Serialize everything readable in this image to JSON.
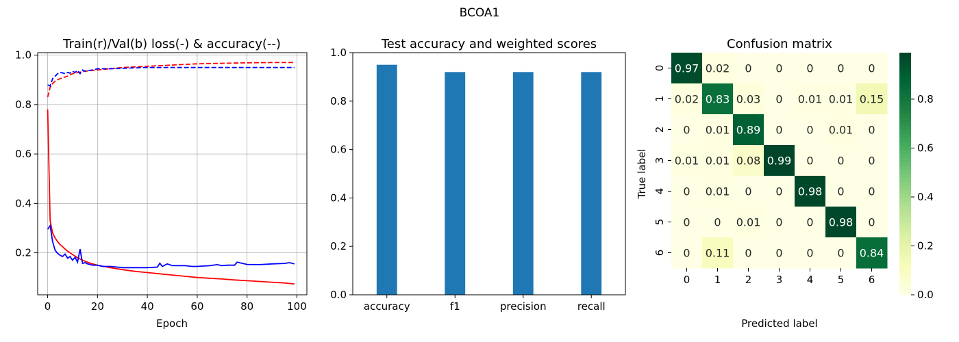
{
  "figure": {
    "suptitle": "BCOA1"
  },
  "chart_data": [
    {
      "type": "line",
      "title": "Train(r)/Val(b) loss(-) & accuracy(--)",
      "xlabel": "Epoch",
      "ylabel": "",
      "xlim": [
        -4,
        104
      ],
      "ylim": [
        0.03,
        1.01
      ],
      "x_ticks": [
        0,
        20,
        40,
        60,
        80,
        100
      ],
      "y_ticks": [
        0.2,
        0.4,
        0.6,
        0.8,
        1.0
      ],
      "grid": true,
      "series": [
        {
          "key": "train_loss",
          "color": "#ff0000",
          "dash": "solid",
          "x": [
            0,
            1,
            2,
            3,
            4,
            5,
            6,
            7,
            8,
            9,
            10,
            12,
            14,
            16,
            18,
            20,
            25,
            30,
            35,
            40,
            45,
            50,
            55,
            60,
            65,
            70,
            75,
            80,
            85,
            90,
            95,
            99
          ],
          "y": [
            0.78,
            0.33,
            0.28,
            0.26,
            0.245,
            0.233,
            0.225,
            0.215,
            0.207,
            0.2,
            0.193,
            0.18,
            0.17,
            0.162,
            0.155,
            0.15,
            0.14,
            0.132,
            0.125,
            0.12,
            0.115,
            0.11,
            0.105,
            0.1,
            0.097,
            0.094,
            0.09,
            0.087,
            0.084,
            0.081,
            0.078,
            0.074
          ]
        },
        {
          "key": "val_loss",
          "color": "#0000ff",
          "dash": "solid",
          "x": [
            0,
            1,
            2,
            3,
            4,
            5,
            6,
            7,
            8,
            9,
            10,
            11,
            12,
            13,
            14,
            15,
            16,
            17,
            18,
            19,
            20,
            22,
            25,
            28,
            30,
            35,
            40,
            44,
            45,
            46,
            48,
            50,
            55,
            58,
            60,
            65,
            68,
            70,
            72,
            75,
            76,
            80,
            85,
            90,
            95,
            97,
            99
          ],
          "y": [
            0.295,
            0.31,
            0.245,
            0.21,
            0.198,
            0.19,
            0.185,
            0.195,
            0.178,
            0.185,
            0.17,
            0.182,
            0.162,
            0.215,
            0.157,
            0.16,
            0.155,
            0.153,
            0.15,
            0.15,
            0.15,
            0.145,
            0.145,
            0.142,
            0.14,
            0.14,
            0.14,
            0.142,
            0.158,
            0.145,
            0.155,
            0.148,
            0.148,
            0.145,
            0.145,
            0.148,
            0.152,
            0.148,
            0.15,
            0.15,
            0.162,
            0.153,
            0.152,
            0.155,
            0.157,
            0.16,
            0.155
          ]
        },
        {
          "key": "train_acc",
          "color": "#ff0000",
          "dash": "dashed",
          "x": [
            0,
            1,
            2,
            3,
            5,
            8,
            10,
            15,
            20,
            30,
            40,
            50,
            60,
            70,
            80,
            90,
            99
          ],
          "y": [
            0.83,
            0.87,
            0.885,
            0.895,
            0.905,
            0.915,
            0.925,
            0.935,
            0.94,
            0.95,
            0.955,
            0.96,
            0.965,
            0.967,
            0.969,
            0.97,
            0.97
          ]
        },
        {
          "key": "val_acc",
          "color": "#0000ff",
          "dash": "dashed",
          "x": [
            0,
            1,
            2,
            3,
            4,
            5,
            6,
            7,
            8,
            9,
            10,
            11,
            12,
            13,
            14,
            15,
            18,
            20,
            25,
            30,
            40,
            50,
            60,
            70,
            80,
            90,
            95,
            99
          ],
          "y": [
            0.88,
            0.875,
            0.905,
            0.915,
            0.925,
            0.93,
            0.928,
            0.925,
            0.93,
            0.927,
            0.935,
            0.93,
            0.938,
            0.925,
            0.94,
            0.935,
            0.94,
            0.945,
            0.945,
            0.947,
            0.95,
            0.95,
            0.95,
            0.95,
            0.95,
            0.95,
            0.95,
            0.95
          ]
        }
      ]
    },
    {
      "type": "bar",
      "title": "Test accuracy and weighted scores",
      "categories": [
        "accuracy",
        "f1",
        "precision",
        "recall"
      ],
      "values": [
        0.95,
        0.92,
        0.92,
        0.92
      ],
      "ylim": [
        0,
        1.0
      ],
      "y_ticks": [
        0.0,
        0.2,
        0.4,
        0.6,
        0.8,
        1.0
      ],
      "color": "#1f77b4",
      "xlabel": "",
      "ylabel": ""
    },
    {
      "type": "heatmap",
      "title": "Confusion matrix",
      "xlabel": "Predicted label",
      "ylabel": "True label",
      "x_labels": [
        "0",
        "1",
        "2",
        "3",
        "4",
        "5",
        "6"
      ],
      "y_labels": [
        "0",
        "1",
        "2",
        "3",
        "4",
        "5",
        "6"
      ],
      "matrix": [
        [
          0.97,
          0.02,
          0,
          0,
          0,
          0,
          0
        ],
        [
          0.02,
          0.83,
          0.03,
          0,
          0.01,
          0.01,
          0.15
        ],
        [
          0,
          0.01,
          0.89,
          0,
          0,
          0.01,
          0
        ],
        [
          0.01,
          0.01,
          0.08,
          0.99,
          0,
          0,
          0
        ],
        [
          0,
          0.01,
          0,
          0,
          0.98,
          0,
          0
        ],
        [
          0,
          0,
          0.01,
          0,
          0,
          0.98,
          0
        ],
        [
          0,
          0.11,
          0,
          0,
          0,
          0,
          0.84
        ]
      ],
      "colormap": "YlGn",
      "vmin": 0,
      "vmax": 0.99,
      "colorbar_ticks": [
        0.0,
        0.2,
        0.4,
        0.6,
        0.8
      ]
    }
  ]
}
